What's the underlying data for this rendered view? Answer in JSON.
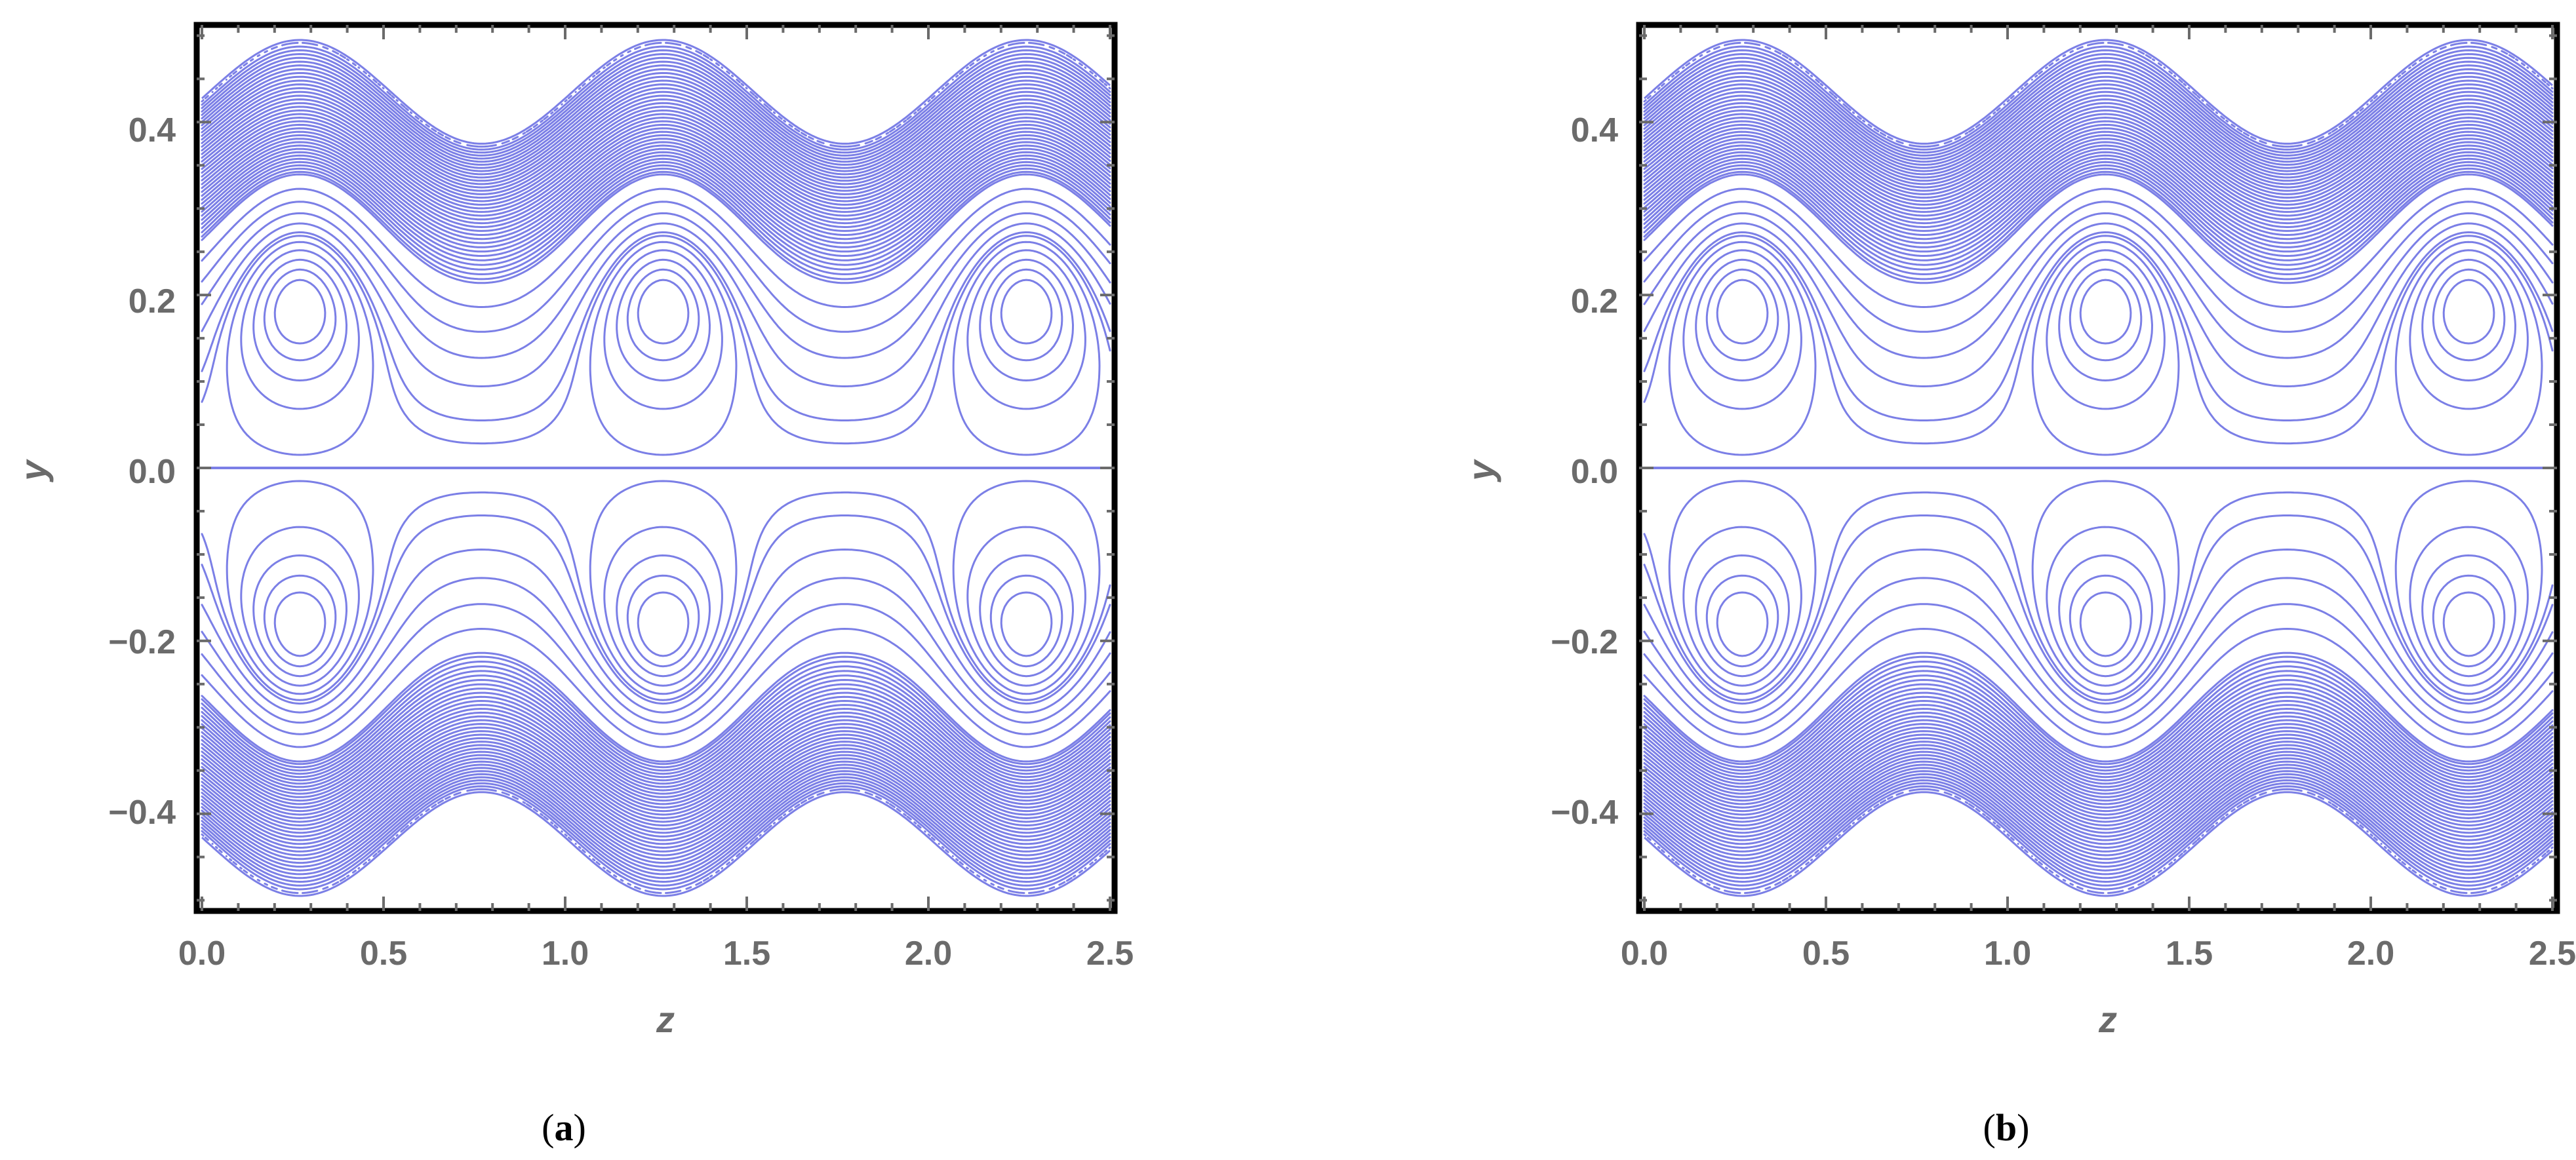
{
  "chart_data": [
    {
      "type": "contour",
      "panel_label": "a",
      "xlabel": "z",
      "ylabel": "y",
      "xlim": [
        0,
        2.5
      ],
      "ylim": [
        -0.52,
        0.52
      ],
      "x_ticks": [
        "0.0",
        "0.5",
        "1.0",
        "1.5",
        "2.0",
        "2.5"
      ],
      "y_ticks": [
        "−0.4",
        "−0.2",
        "0.0",
        "0.2",
        "0.4"
      ],
      "wall_mean": 0.435,
      "wall_amplitude": 0.06,
      "wavelength": 1.0,
      "vortex_centers": [
        [
          0.27,
          0.2
        ],
        [
          1.27,
          0.2
        ],
        [
          2.27,
          0.2
        ],
        [
          0.27,
          -0.2
        ],
        [
          1.27,
          -0.2
        ],
        [
          2.27,
          -0.2
        ]
      ],
      "line_color": "#7b7fe6"
    },
    {
      "type": "contour",
      "panel_label": "b",
      "xlabel": "z",
      "ylabel": "y",
      "xlim": [
        0,
        2.5
      ],
      "ylim": [
        -0.52,
        0.52
      ],
      "x_ticks": [
        "0.0",
        "0.5",
        "1.0",
        "1.5",
        "2.0",
        "2.5"
      ],
      "y_ticks": [
        "−0.4",
        "−0.2",
        "0.0",
        "0.2",
        "0.4"
      ],
      "wall_mean": 0.435,
      "wall_amplitude": 0.06,
      "wavelength": 1.0,
      "vortex_centers": [
        [
          0.27,
          0.2
        ],
        [
          1.27,
          0.2
        ],
        [
          2.27,
          0.2
        ],
        [
          0.27,
          -0.2
        ],
        [
          1.27,
          -0.2
        ],
        [
          2.27,
          -0.2
        ]
      ],
      "line_color": "#7b7fe6"
    }
  ]
}
